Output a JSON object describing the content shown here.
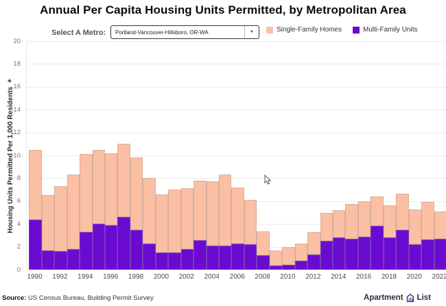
{
  "title": "Annual Per Capita Housing Units Permitted, by Metropolitan Area",
  "controls": {
    "select_label": "Select A Metro:",
    "dropdown_value": "Portland-Vancouver-Hillsboro, OR-WA"
  },
  "icons": {
    "dropdown_arrow": "▼",
    "sparkle": "✦"
  },
  "legend": [
    {
      "label": "Single-Family Homes",
      "color": "#FBBFA3"
    },
    {
      "label": "Multi-Family Units",
      "color": "#6B0BD1"
    }
  ],
  "chart_data": {
    "type": "bar",
    "stacked": true,
    "title": "Annual Per Capita Housing Units Permitted, by Metropolitan Area",
    "ylabel": "Housing Units Permitted Per 1,000 Residents",
    "xlabel": "",
    "ylim": [
      0,
      20
    ],
    "yticks": [
      0,
      2,
      4,
      6,
      8,
      10,
      12,
      14,
      16,
      18,
      20
    ],
    "grid": true,
    "legend_position": "top-right",
    "categories": [
      1990,
      1991,
      1992,
      1993,
      1994,
      1995,
      1996,
      1997,
      1998,
      1999,
      2000,
      2001,
      2002,
      2003,
      2004,
      2005,
      2006,
      2007,
      2008,
      2009,
      2010,
      2011,
      2012,
      2013,
      2014,
      2015,
      2016,
      2017,
      2018,
      2019,
      2020,
      2021,
      2022
    ],
    "x_tick_years": [
      1990,
      1992,
      1994,
      1996,
      1998,
      2000,
      2002,
      2004,
      2006,
      2008,
      2010,
      2012,
      2014,
      2016,
      2018,
      2020,
      2022
    ],
    "series": [
      {
        "name": "Multi-Family Units",
        "color": "#6B0BD1",
        "values": [
          4.4,
          1.7,
          1.6,
          1.8,
          3.3,
          4.0,
          3.9,
          4.6,
          3.5,
          2.3,
          1.5,
          1.5,
          1.8,
          2.6,
          2.1,
          2.1,
          2.3,
          2.2,
          1.25,
          0.35,
          0.4,
          0.8,
          1.3,
          2.5,
          2.8,
          2.7,
          2.9,
          3.85,
          2.8,
          3.5,
          2.2,
          2.65,
          2.7
        ]
      },
      {
        "name": "Single-Family Homes",
        "color": "#FBBFA3",
        "values": [
          6.1,
          4.8,
          5.7,
          6.5,
          6.8,
          6.5,
          6.3,
          6.4,
          6.3,
          5.7,
          5.1,
          5.5,
          5.3,
          5.2,
          5.6,
          6.2,
          4.9,
          3.9,
          2.1,
          1.35,
          1.55,
          1.5,
          2.0,
          2.5,
          2.4,
          3.05,
          3.1,
          2.55,
          2.85,
          3.15,
          3.05,
          3.25,
          2.4
        ]
      }
    ]
  },
  "footer": {
    "source_label": "Source:",
    "source_text": " US Census Bureau, Building Permit Survey",
    "logo_apartment": "Apartment",
    "logo_list": "List"
  }
}
